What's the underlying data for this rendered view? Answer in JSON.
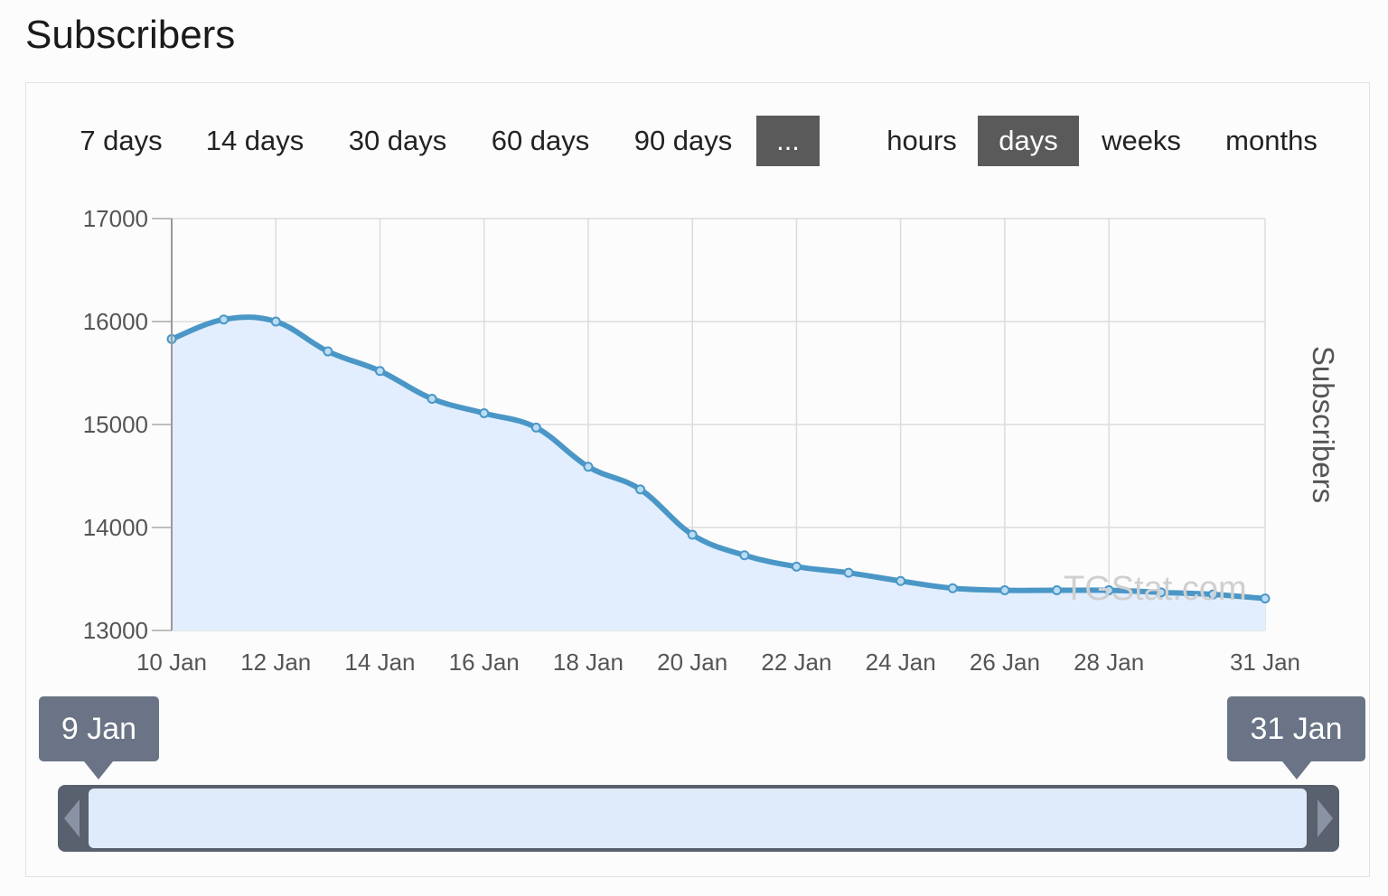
{
  "page": {
    "title": "Subscribers"
  },
  "range_buttons": [
    {
      "label": "7 days",
      "active": false
    },
    {
      "label": "14 days",
      "active": false
    },
    {
      "label": "30 days",
      "active": false
    },
    {
      "label": "60 days",
      "active": false
    },
    {
      "label": "90 days",
      "active": false
    },
    {
      "label": "...",
      "active": true
    }
  ],
  "granularity_buttons": [
    {
      "label": "hours",
      "active": false
    },
    {
      "label": "days",
      "active": true
    },
    {
      "label": "weeks",
      "active": false
    },
    {
      "label": "months",
      "active": false
    }
  ],
  "navigator": {
    "start_label": "9 Jan",
    "end_label": "31 Jan"
  },
  "watermark": "TGStat.com",
  "colors": {
    "line": "#4a97c7",
    "area": "#e2eefd",
    "grid": "#dcdcdc",
    "active_button": "#5a5a5a",
    "navigator_label": "#6a7486"
  },
  "chart_data": {
    "type": "area",
    "title": "",
    "xlabel": "",
    "ylabel": "Subscribers",
    "ylim": [
      13000,
      17000
    ],
    "yticks": [
      13000,
      14000,
      15000,
      16000,
      17000
    ],
    "xlim": [
      "2021-01-10",
      "2021-01-31"
    ],
    "xtick_labels": [
      "10 Jan",
      "12 Jan",
      "14 Jan",
      "16 Jan",
      "18 Jan",
      "20 Jan",
      "22 Jan",
      "24 Jan",
      "26 Jan",
      "28 Jan",
      "31 Jan"
    ],
    "xticks": [
      "2021-01-10",
      "2021-01-12",
      "2021-01-14",
      "2021-01-16",
      "2021-01-18",
      "2021-01-20",
      "2021-01-22",
      "2021-01-24",
      "2021-01-26",
      "2021-01-28",
      "2021-01-31"
    ],
    "grid": true,
    "legend": "none",
    "series": [
      {
        "x": [
          "2021-01-10",
          "2021-01-11",
          "2021-01-12",
          "2021-01-13",
          "2021-01-14",
          "2021-01-15",
          "2021-01-16",
          "2021-01-17",
          "2021-01-18",
          "2021-01-19",
          "2021-01-20",
          "2021-01-21",
          "2021-01-22",
          "2021-01-23",
          "2021-01-24",
          "2021-01-25",
          "2021-01-26",
          "2021-01-27",
          "2021-01-28",
          "2021-01-29",
          "2021-01-30",
          "2021-01-31"
        ],
        "values": [
          15830,
          16020,
          16000,
          15710,
          15520,
          15250,
          15110,
          14970,
          14590,
          14370,
          13930,
          13730,
          13620,
          13560,
          13480,
          13410,
          13390,
          13390,
          13390,
          13370,
          13350,
          13310
        ]
      }
    ]
  }
}
